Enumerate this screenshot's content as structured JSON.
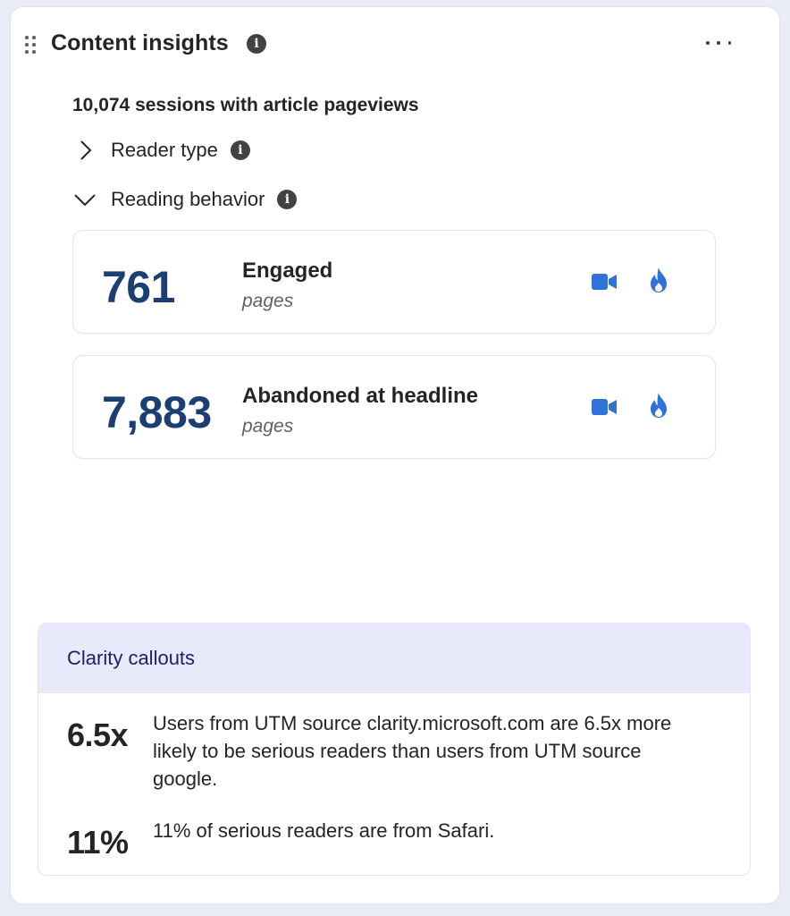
{
  "header": {
    "title": "Content insights",
    "info_icon": "info-icon",
    "more_icon": "more-horizontal-icon"
  },
  "summary": {
    "sessions_text": "10,074 sessions with article pageviews"
  },
  "sections": [
    {
      "label": "Reader type",
      "expanded": false
    },
    {
      "label": "Reading behavior",
      "expanded": true
    }
  ],
  "metrics": [
    {
      "value": "761",
      "title": "Engaged",
      "subtitle": "pages"
    },
    {
      "value": "7,883",
      "title": "Abandoned at headline",
      "subtitle": "pages"
    }
  ],
  "callouts": {
    "title": "Clarity callouts",
    "items": [
      {
        "value": "6.5x",
        "text": "Users from UTM source clarity.microsoft.com are 6.5x more likely to be serious readers than users from UTM source google."
      },
      {
        "value": "11%",
        "text": "11% of serious readers are from Safari."
      }
    ]
  },
  "colors": {
    "accent_blue": "#2f73d9",
    "metric_value": "#1b3f72",
    "callout_header_bg": "#e8e9fa",
    "callout_title": "#1a1f66"
  }
}
